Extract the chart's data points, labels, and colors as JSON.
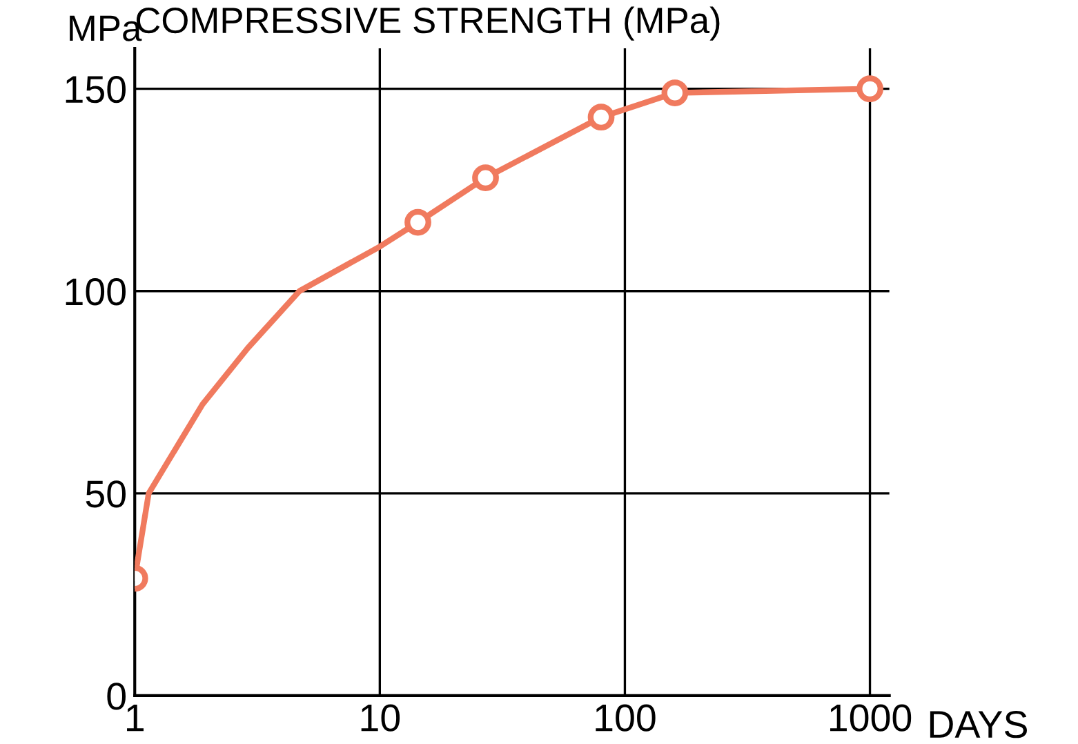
{
  "chart_data": {
    "type": "line",
    "title": "COMPRESSIVE STRENGTH (MPa)",
    "ylabel": "MPa",
    "xlabel": "DAYS",
    "log": "x",
    "xlim": [
      1,
      1200
    ],
    "ylim": [
      0,
      160
    ],
    "xticks": [
      1,
      10,
      100,
      1000
    ],
    "yticks": [
      0,
      50,
      100,
      150
    ],
    "grid": true,
    "series": [
      {
        "color": "#f07a5e",
        "marker": "none",
        "x": [
          1,
          1.14,
          1.89,
          2.9,
          4.7,
          10,
          14.3,
          27,
          80,
          160,
          1000
        ],
        "values": [
          29,
          50,
          72,
          86,
          100,
          111,
          117,
          128,
          143,
          149,
          150
        ]
      },
      {
        "type": "scatter",
        "color": "#f07a5e",
        "marker": "circle",
        "x": [
          1,
          14.3,
          27,
          80,
          160,
          1000
        ],
        "values": [
          29,
          117,
          128,
          143,
          149,
          150
        ]
      }
    ]
  }
}
